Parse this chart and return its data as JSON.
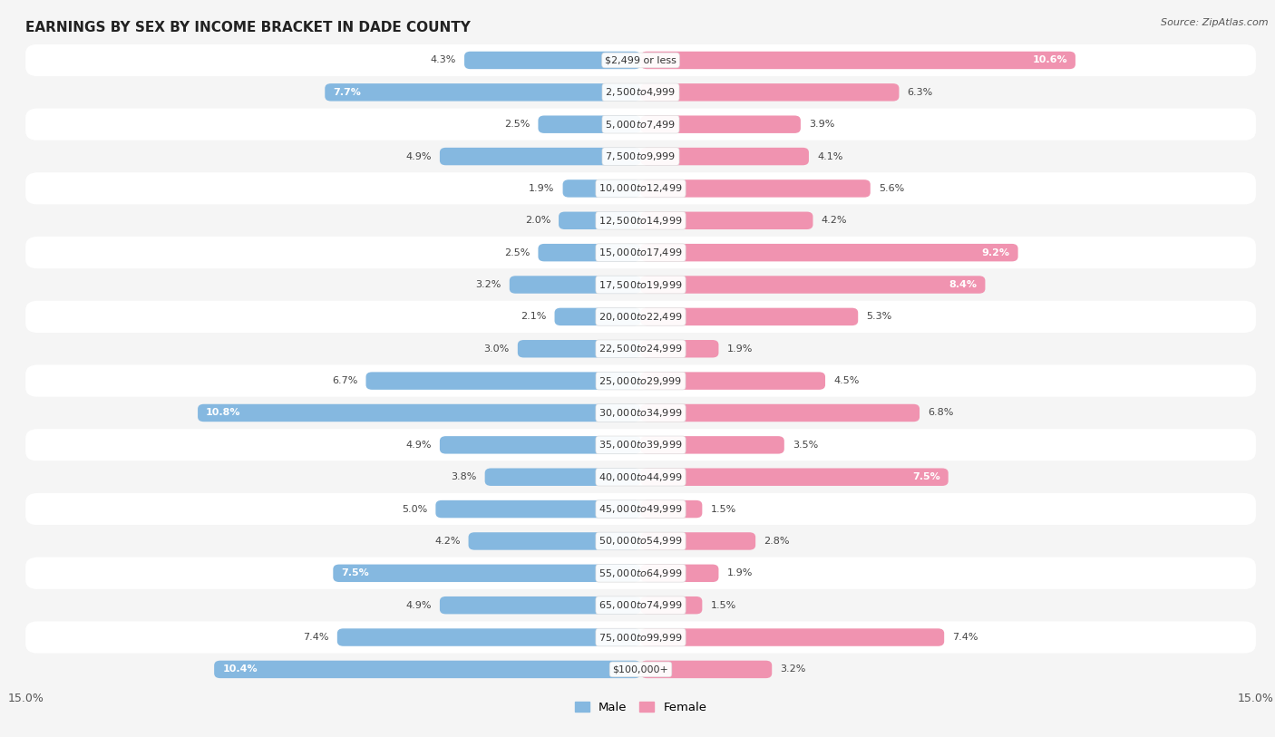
{
  "title": "EARNINGS BY SEX BY INCOME BRACKET IN DADE COUNTY",
  "source": "Source: ZipAtlas.com",
  "categories": [
    "$2,499 or less",
    "$2,500 to $4,999",
    "$5,000 to $7,499",
    "$7,500 to $9,999",
    "$10,000 to $12,499",
    "$12,500 to $14,999",
    "$15,000 to $17,499",
    "$17,500 to $19,999",
    "$20,000 to $22,499",
    "$22,500 to $24,999",
    "$25,000 to $29,999",
    "$30,000 to $34,999",
    "$35,000 to $39,999",
    "$40,000 to $44,999",
    "$45,000 to $49,999",
    "$50,000 to $54,999",
    "$55,000 to $64,999",
    "$65,000 to $74,999",
    "$75,000 to $99,999",
    "$100,000+"
  ],
  "male_values": [
    4.3,
    7.7,
    2.5,
    4.9,
    1.9,
    2.0,
    2.5,
    3.2,
    2.1,
    3.0,
    6.7,
    10.8,
    4.9,
    3.8,
    5.0,
    4.2,
    7.5,
    4.9,
    7.4,
    10.4
  ],
  "female_values": [
    10.6,
    6.3,
    3.9,
    4.1,
    5.6,
    4.2,
    9.2,
    8.4,
    5.3,
    1.9,
    4.5,
    6.8,
    3.5,
    7.5,
    1.5,
    2.8,
    1.9,
    1.5,
    7.4,
    3.2
  ],
  "male_color": "#85b8e0",
  "female_color": "#f093b0",
  "background_row_odd": "#f5f5f5",
  "background_row_even": "#ffffff",
  "xlim": 15.0,
  "bar_height": 0.55,
  "label_inside_threshold": 7.5,
  "legend_male": "Male",
  "legend_female": "Female",
  "fig_bg": "#f5f5f5"
}
